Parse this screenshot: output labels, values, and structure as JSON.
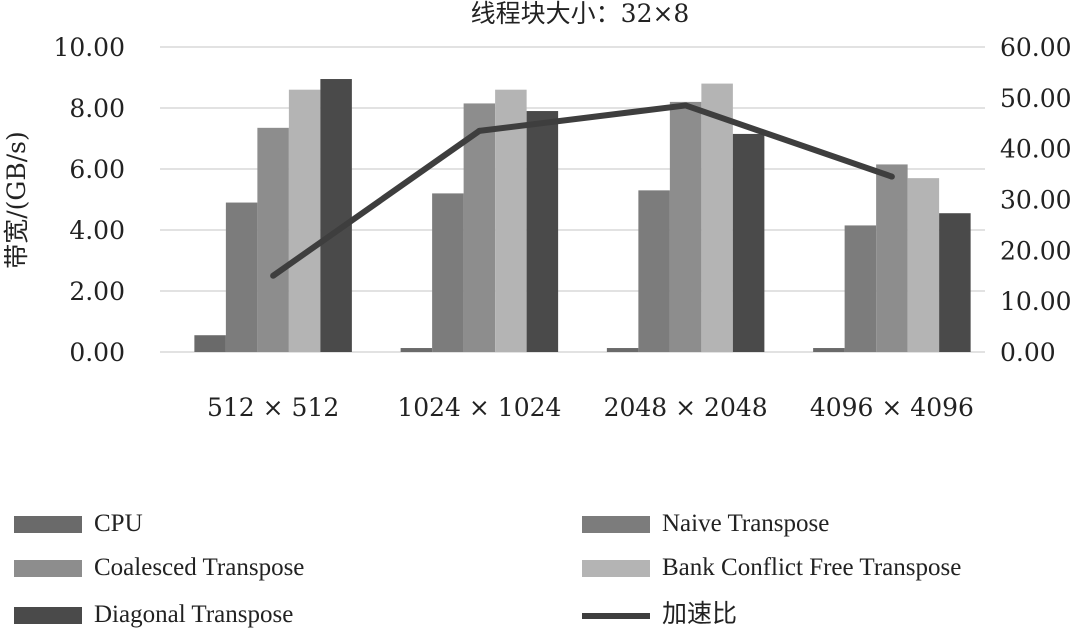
{
  "chart_data": {
    "type": "bar+line",
    "title": "线程块大小：32×8",
    "ylabel": "带宽/(GB/s)",
    "categories": [
      "512 × 512",
      "1024 × 1024",
      "2048 × 2048",
      "4096 × 4096"
    ],
    "ylim": [
      0,
      10
    ],
    "y2lim": [
      0,
      60
    ],
    "yticks": [
      "0.00",
      "2.00",
      "4.00",
      "6.00",
      "8.00",
      "10.00"
    ],
    "y2ticks": [
      "0.00",
      "10.00",
      "20.00",
      "30.00",
      "40.00",
      "50.00",
      "60.00"
    ],
    "series": [
      {
        "name": "CPU",
        "type": "bar",
        "axis": "left",
        "color": "#6a6a6a",
        "values": [
          0.55,
          0.13,
          0.13,
          0.13
        ]
      },
      {
        "name": "Naive Transpose",
        "type": "bar",
        "axis": "left",
        "color": "#7c7c7c",
        "values": [
          4.9,
          5.2,
          5.3,
          4.15
        ]
      },
      {
        "name": "Coalesced Transpose",
        "type": "bar",
        "axis": "left",
        "color": "#8d8d8d",
        "values": [
          7.35,
          8.15,
          8.2,
          6.15
        ]
      },
      {
        "name": "Bank Conflict Free Transpose",
        "type": "bar",
        "axis": "left",
        "color": "#b4b4b4",
        "values": [
          8.6,
          8.6,
          8.8,
          5.7
        ]
      },
      {
        "name": "Diagonal Transpose",
        "type": "bar",
        "axis": "left",
        "color": "#4a4a4a",
        "values": [
          8.95,
          7.9,
          7.15,
          4.55
        ]
      },
      {
        "name": "加速比",
        "type": "line",
        "axis": "right",
        "color": "#3e3e3e",
        "values": [
          15.0,
          43.5,
          48.5,
          34.5
        ]
      }
    ],
    "grid": true,
    "legend_position": "bottom"
  }
}
